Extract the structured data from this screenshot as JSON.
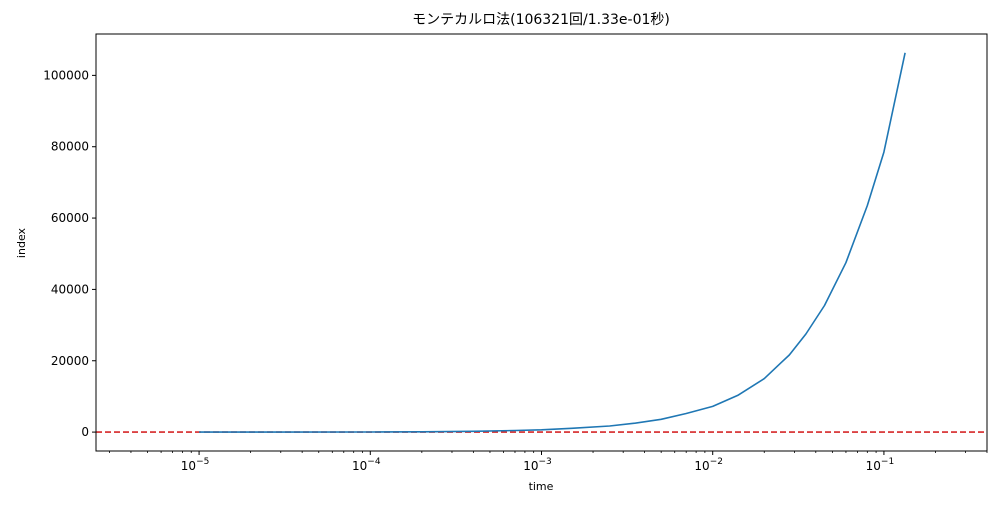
{
  "chart_data": {
    "type": "line",
    "title": "モンテカルロ法(106321回/1.33e-01秒)",
    "xlabel": "time",
    "ylabel": "index",
    "xscale": "log",
    "xlim": [
      2.5e-06,
      0.4
    ],
    "ylim": [
      -5300,
      111600
    ],
    "x_ticks": [
      {
        "value": 1e-05,
        "base": "10",
        "exp": "−5"
      },
      {
        "value": 0.0001,
        "base": "10",
        "exp": "−4"
      },
      {
        "value": 0.001,
        "base": "10",
        "exp": "−3"
      },
      {
        "value": 0.01,
        "base": "10",
        "exp": "−2"
      },
      {
        "value": 0.1,
        "base": "10",
        "exp": "−1"
      }
    ],
    "y_ticks": [
      {
        "value": 0,
        "label": "0"
      },
      {
        "value": 20000,
        "label": "20000"
      },
      {
        "value": 40000,
        "label": "40000"
      },
      {
        "value": 60000,
        "label": "60000"
      },
      {
        "value": 80000,
        "label": "80000"
      },
      {
        "value": 100000,
        "label": "100000"
      }
    ],
    "series": [
      {
        "color": "#1f77b4",
        "points": [
          [
            1e-05,
            0
          ],
          [
            3e-05,
            0
          ],
          [
            0.0001,
            30
          ],
          [
            0.0002,
            90
          ],
          [
            0.0004,
            230
          ],
          [
            0.0007,
            450
          ],
          [
            0.001,
            650
          ],
          [
            0.0015,
            1050
          ],
          [
            0.0025,
            1700
          ],
          [
            0.0035,
            2500
          ],
          [
            0.005,
            3600
          ],
          [
            0.007,
            5200
          ],
          [
            0.01,
            7200
          ],
          [
            0.014,
            10300
          ],
          [
            0.02,
            15000
          ],
          [
            0.025,
            19400
          ],
          [
            0.028,
            21600
          ],
          [
            0.035,
            27500
          ],
          [
            0.045,
            35500
          ],
          [
            0.06,
            47500
          ],
          [
            0.08,
            63500
          ],
          [
            0.1,
            78500
          ],
          [
            0.133,
            106321
          ]
        ]
      }
    ],
    "hlines": [
      {
        "y": 0,
        "color": "#d62728",
        "style": "dashed"
      }
    ]
  }
}
